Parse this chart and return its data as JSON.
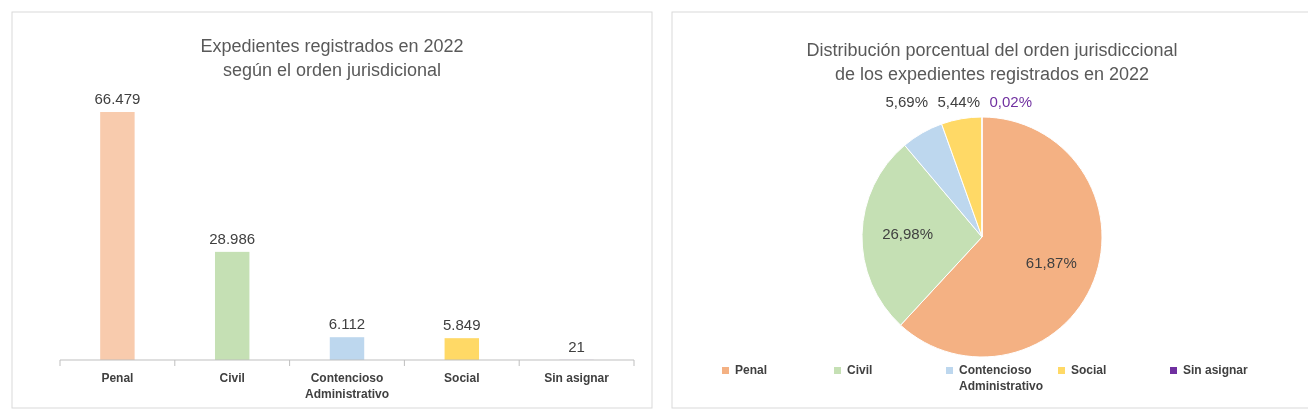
{
  "chart_data": [
    {
      "type": "bar",
      "title": "Expedientes registrados en 2022\nsegún el orden jurisdicional",
      "categories": [
        "Penal",
        "Civil",
        "Contencioso Administrativo",
        "Social",
        "Sin asignar"
      ],
      "values": [
        66479,
        28986,
        6112,
        5849,
        21
      ],
      "colors": [
        "#f8cbad",
        "#c5e0b4",
        "#bdd7ee",
        "#ffd966",
        "#7030a0"
      ],
      "value_labels": [
        "66.479",
        "28.986",
        "6.112",
        "5.849",
        "21"
      ]
    },
    {
      "type": "pie",
      "title": "Distribución porcentual del orden jurisdiccional\nde los expedientes registrados en 2022",
      "categories": [
        "Penal",
        "Civil",
        "Contencioso Administrativo",
        "Social",
        "Sin asignar"
      ],
      "values": [
        61.87,
        26.98,
        5.69,
        5.44,
        0.02
      ],
      "colors": [
        "#f4b183",
        "#c5e0b4",
        "#bdd7ee",
        "#ffd966",
        "#7030a0"
      ],
      "value_labels": [
        "61,87%",
        "26,98%",
        "5,69%",
        "5,44%",
        "0,02%"
      ],
      "legend": "bottom"
    }
  ]
}
